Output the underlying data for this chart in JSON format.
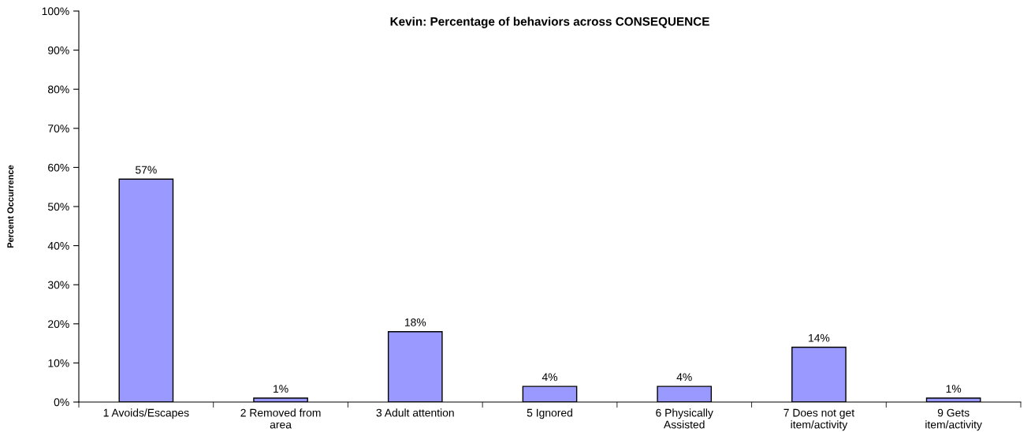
{
  "chart_data": {
    "type": "bar",
    "title": "Kevin: Percentage of behaviors across CONSEQUENCE",
    "ylabel": "Percent Occurrence",
    "categories": [
      "1 Avoids/Escapes",
      "2 Removed from\narea",
      "3 Adult attention",
      "5 Ignored",
      "6 Physically\nAssisted",
      "7 Does not get\nitem/activity",
      "9 Gets\nitem/activity"
    ],
    "values": [
      57,
      1,
      18,
      4,
      4,
      14,
      1
    ],
    "value_labels": [
      "57%",
      "1%",
      "18%",
      "4%",
      "4%",
      "14%",
      "1%"
    ],
    "color": "#9999ff",
    "ylim": [
      0,
      100
    ],
    "yticks": [
      {
        "value": 0,
        "label": "0%"
      },
      {
        "value": 10,
        "label": "10%"
      },
      {
        "value": 20,
        "label": "20%"
      },
      {
        "value": 30,
        "label": "30%"
      },
      {
        "value": 40,
        "label": "40%"
      },
      {
        "value": 50,
        "label": "50%"
      },
      {
        "value": 60,
        "label": "60%"
      },
      {
        "value": 70,
        "label": "70%"
      },
      {
        "value": 80,
        "label": "80%"
      },
      {
        "value": 90,
        "label": "90%"
      },
      {
        "value": 100,
        "label": "100%"
      }
    ],
    "grid": false
  }
}
